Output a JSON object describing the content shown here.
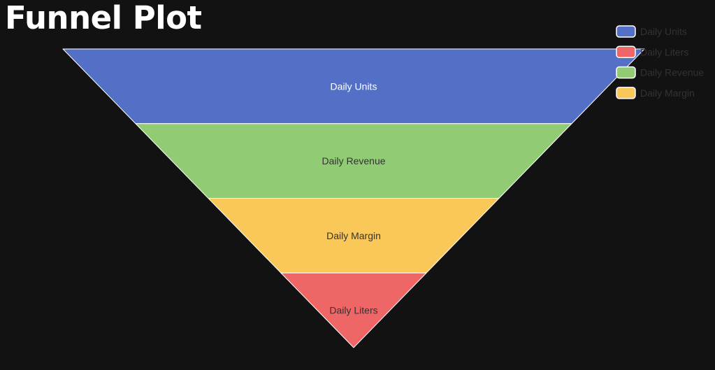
{
  "title": "Funnel Plot",
  "chart_data": {
    "type": "funnel",
    "title": "Funnel Plot",
    "stages": [
      {
        "name": "Daily Units",
        "value": 100,
        "color": "#5470c6",
        "label_color": "#ffffff"
      },
      {
        "name": "Daily Revenue",
        "value": 75,
        "color": "#91cc75",
        "label_color": "#333333"
      },
      {
        "name": "Daily Margin",
        "value": 50,
        "color": "#fac858",
        "label_color": "#333333"
      },
      {
        "name": "Daily Liters",
        "value": 25,
        "color": "#ee6666",
        "label_color": "#333333"
      }
    ],
    "legend": {
      "position": "top-right",
      "items": [
        {
          "name": "Daily Units",
          "color": "#5470c6"
        },
        {
          "name": "Daily Liters",
          "color": "#ee6666"
        },
        {
          "name": "Daily Revenue",
          "color": "#91cc75"
        },
        {
          "name": "Daily Margin",
          "color": "#fac858"
        }
      ],
      "text_color": "#333333"
    },
    "background": "#121212"
  }
}
